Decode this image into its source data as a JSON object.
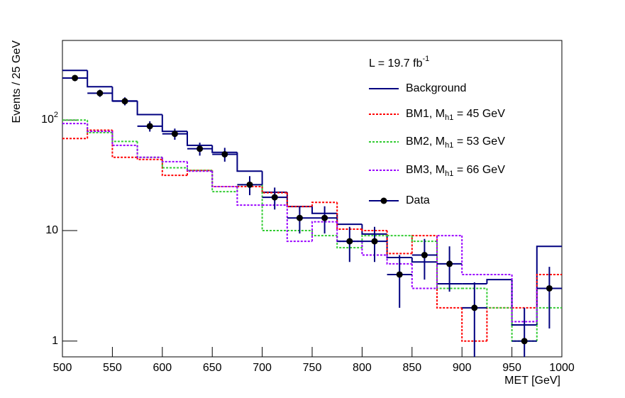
{
  "chart_data": {
    "type": "histogram",
    "x_label": "MET [GeV]",
    "y_label": "Events / 25 GeV",
    "annotation": "L = 19.7 fb^{-1}",
    "bins": [
      500,
      525,
      550,
      575,
      600,
      625,
      650,
      675,
      700,
      725,
      750,
      775,
      800,
      825,
      850,
      875,
      900,
      925,
      950,
      975,
      1000
    ],
    "xlim": [
      500,
      1000
    ],
    "xticks": [
      500,
      550,
      600,
      650,
      700,
      750,
      800,
      850,
      900,
      950,
      1000
    ],
    "ylim": [
      0.72,
      525
    ],
    "log_y": true,
    "yticks": [
      1,
      10,
      {
        "value": 100,
        "label": "10^{2}"
      }
    ],
    "legend": "upper right",
    "series": [
      {
        "name": "Background",
        "color": "#000080",
        "style": "solid",
        "values": [
          281,
          200,
          149,
          112,
          79,
          59,
          51,
          34.5,
          22.2,
          16.5,
          14.3,
          11.4,
          9.3,
          5.7,
          5.2,
          3.3,
          3.3,
          3.6,
          1.4,
          7.2
        ]
      },
      {
        "name": "BM1, M_{h1} = 45 GeV",
        "color": "#ff0000",
        "style": "dashed",
        "values": [
          68,
          81,
          46,
          44,
          31.6,
          35,
          25,
          25,
          22,
          16.5,
          18,
          10.3,
          10,
          6.2,
          9,
          2,
          1,
          2,
          2,
          4
        ]
      },
      {
        "name": "BM2, M_{h1} = 53 GeV",
        "color": "#33cc33",
        "style": "dashed",
        "values": [
          100,
          77,
          64,
          46,
          37,
          35,
          22.5,
          26,
          10,
          10,
          9,
          7,
          9,
          9,
          8,
          3,
          3,
          2,
          1,
          2
        ]
      },
      {
        "name": "BM3, M_{h1} = 66 GeV",
        "color": "#9900ff",
        "style": "dashed",
        "values": [
          93,
          79,
          59,
          46,
          42,
          34.5,
          25,
          17,
          17,
          8,
          12,
          8,
          6,
          5,
          3,
          9,
          4,
          4,
          1.5,
          3
        ]
      },
      {
        "name": "Data",
        "color": "#000000",
        "style": "points",
        "error_color": "#000080",
        "values": [
          240,
          175,
          148,
          88,
          75,
          55,
          49,
          26,
          20,
          13,
          13,
          8,
          8,
          4,
          6,
          5,
          2,
          null,
          1,
          3
        ],
        "errors": [
          15.5,
          13.2,
          12.2,
          9.4,
          8.7,
          7.4,
          7,
          5.1,
          4.5,
          3.6,
          3.6,
          2.8,
          2.8,
          2,
          2.4,
          2.2,
          1.4,
          null,
          1,
          1.7
        ]
      }
    ]
  }
}
